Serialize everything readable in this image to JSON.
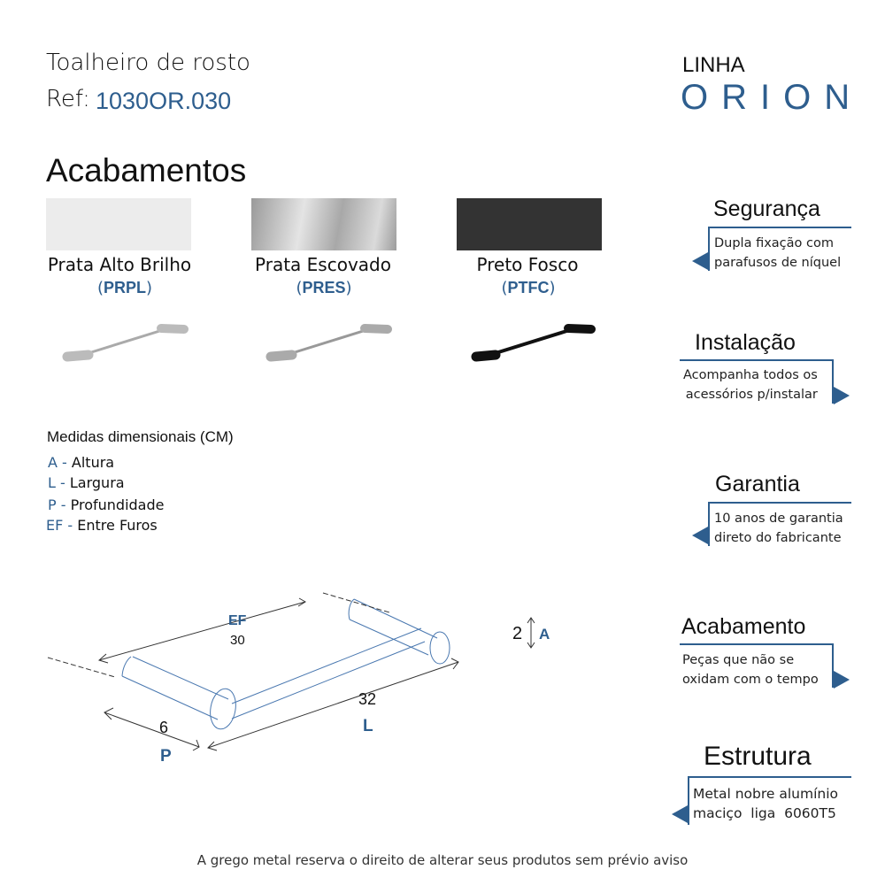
{
  "header": {
    "product_name": "Toalheiro de rosto",
    "ref_label": "Ref:",
    "ref_code": "1030OR.030",
    "line_label": "LINHA",
    "line_name": "ORION"
  },
  "finishes": {
    "heading": "Acabamentos",
    "items": [
      {
        "name": "Prata Alto Brilho",
        "code": "PRPL",
        "color": "#ececec"
      },
      {
        "name": "Prata Escovado",
        "code": "PRES",
        "color": "#b8b8b8"
      },
      {
        "name": "Preto Fosco",
        "code": "PTFC",
        "color": "#333333"
      }
    ]
  },
  "dimensions": {
    "heading": "Medidas dimensionais (CM)",
    "legend": [
      {
        "key": "A -",
        "label": "Altura"
      },
      {
        "key": "L -",
        "label": "Largura"
      },
      {
        "key": "P -",
        "label": "Profundidade"
      },
      {
        "key": "EF -",
        "label": "Entre Furos"
      }
    ],
    "diagram": {
      "ef_key": "EF",
      "ef_value": "30",
      "a_key": "A",
      "a_value": "2",
      "l_key": "L",
      "l_value": "32",
      "p_key": "P",
      "p_value": "6"
    }
  },
  "features": [
    {
      "title": "Segurança",
      "line1": "Dupla fixação com",
      "line2": "parafusos de níquel"
    },
    {
      "title": "Instalação",
      "line1": "Acompanha todos os",
      "line2": "acessórios p/instalar"
    },
    {
      "title": "Garantia",
      "line1": "10 anos de garantia",
      "line2": "direto do fabricante"
    },
    {
      "title": "Acabamento",
      "line1": "Peças que não se",
      "line2": "oxidam com o tempo"
    },
    {
      "title": "Estrutura",
      "line1": "Metal nobre alumínio",
      "line2": "maciço  liga  6060T5"
    }
  ],
  "footer": {
    "disclaimer": "A grego metal reserva o direito de alterar seus produtos sem prévio aviso"
  },
  "colors": {
    "accent": "#2e5e8e"
  }
}
